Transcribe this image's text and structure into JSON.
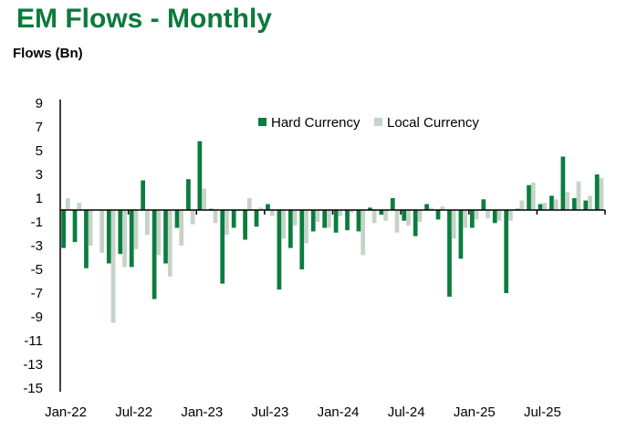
{
  "chart_data": {
    "type": "bar",
    "title": "EM Flows - Monthly",
    "ylabel": "Flows (Bn)",
    "xlabel": "",
    "ylim": [
      -15,
      9
    ],
    "yticks": [
      9,
      7,
      5,
      3,
      1,
      -1,
      -3,
      -5,
      -7,
      -9,
      -11,
      -13,
      -15
    ],
    "grid": false,
    "legend_position": "top-center",
    "categories": [
      "Jan-22",
      "Feb-22",
      "Mar-22",
      "Apr-22",
      "May-22",
      "Jun-22",
      "Jul-22",
      "Aug-22",
      "Sep-22",
      "Oct-22",
      "Nov-22",
      "Dec-22",
      "Jan-23",
      "Feb-23",
      "Mar-23",
      "Apr-23",
      "May-23",
      "Jun-23",
      "Jul-23",
      "Aug-23",
      "Sep-23",
      "Oct-23",
      "Nov-23",
      "Dec-23",
      "Jan-24",
      "Feb-24",
      "Mar-24",
      "Apr-24",
      "May-24",
      "Jun-24",
      "Jul-24",
      "Aug-24",
      "Sep-24",
      "Oct-24",
      "Nov-24",
      "Dec-24",
      "Jan-25",
      "Feb-25",
      "Mar-25",
      "Apr-25",
      "May-25",
      "Jun-25",
      "Jul-25",
      "Aug-25",
      "Sep-25",
      "Oct-25",
      "Nov-25",
      "Dec-25"
    ],
    "xtick_labels": [
      {
        "label": "Jan-22",
        "index": 0
      },
      {
        "label": "Jul-22",
        "index": 6
      },
      {
        "label": "Jan-23",
        "index": 12
      },
      {
        "label": "Jul-23",
        "index": 18
      },
      {
        "label": "Jan-24",
        "index": 24
      },
      {
        "label": "Jul-24",
        "index": 30
      },
      {
        "label": "Jan-25",
        "index": 36
      },
      {
        "label": "Jul-25",
        "index": 42
      }
    ],
    "series": [
      {
        "name": "Hard Currency",
        "color": "#0a7d3e",
        "values": [
          -3.2,
          -2.7,
          -4.9,
          0.0,
          -4.5,
          -3.7,
          -4.8,
          2.5,
          -7.5,
          -4.5,
          -1.5,
          2.6,
          5.8,
          0.1,
          -6.2,
          -1.5,
          -2.5,
          -1.4,
          0.5,
          -6.7,
          -3.2,
          -5.0,
          -1.8,
          -1.5,
          -1.9,
          -1.7,
          -1.8,
          0.2,
          -0.4,
          1.0,
          -0.9,
          -2.2,
          0.5,
          -0.8,
          -7.3,
          -4.1,
          -1.5,
          0.9,
          -1.1,
          -7.0,
          0.1,
          2.1,
          0.5,
          1.2,
          4.5,
          1.0,
          0.8,
          3.0
        ]
      },
      {
        "name": "Local Currency",
        "color": "#c5d3c8",
        "values": [
          1.0,
          0.6,
          -3.0,
          -3.6,
          -9.5,
          -4.8,
          -3.3,
          -2.1,
          -3.8,
          -5.6,
          -3.0,
          -1.2,
          1.8,
          -1.1,
          -2.1,
          -0.1,
          1.0,
          0.2,
          -0.5,
          -2.4,
          -1.3,
          -2.8,
          -1.0,
          -1.5,
          -0.5,
          -0.2,
          -3.8,
          -1.1,
          -0.9,
          -1.9,
          -1.3,
          -1.0,
          0.2,
          0.3,
          -2.4,
          -1.5,
          -0.8,
          -0.7,
          -0.9,
          -0.9,
          0.8,
          2.3,
          0.6,
          0.9,
          1.5,
          2.4,
          1.2,
          2.7
        ]
      }
    ]
  }
}
